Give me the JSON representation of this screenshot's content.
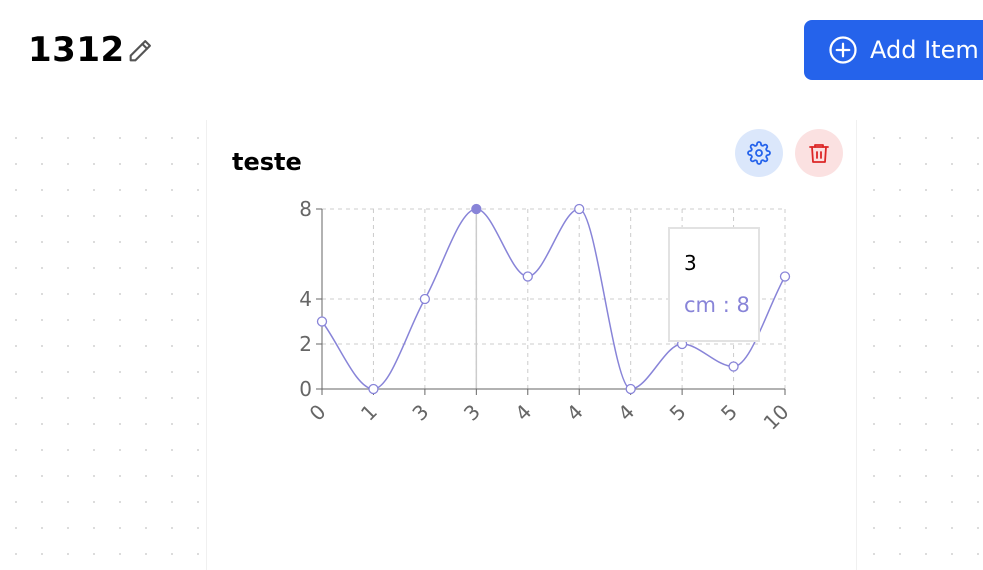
{
  "page": {
    "title": "1312"
  },
  "header": {
    "add_button_label": "Add Item"
  },
  "card": {
    "title": "teste"
  },
  "tooltip": {
    "label": "3",
    "series_name": "cm",
    "separator": " : ",
    "value": "8"
  },
  "colors": {
    "primary_button": "#2563eb",
    "series_line": "#8884d8",
    "settings_bg": "#dbe7fb",
    "settings_icon": "#2563eb",
    "delete_bg": "#fbe1e1",
    "delete_icon": "#dc2626"
  },
  "icons": [
    "pencil-icon",
    "plus-circle-icon",
    "gear-icon",
    "trash-icon"
  ],
  "chart_data": {
    "type": "line",
    "curve": "monotone",
    "categories": [
      "0",
      "1",
      "3",
      "3",
      "4",
      "4",
      "4",
      "5",
      "5",
      "10"
    ],
    "series": [
      {
        "name": "cm",
        "values": [
          3,
          0,
          4,
          8,
          5,
          8,
          0,
          2,
          1,
          5
        ]
      }
    ],
    "yticks": [
      "0",
      "2",
      "4",
      "8"
    ],
    "ylim": [
      0,
      8
    ],
    "grid": true,
    "active_index": 3,
    "xlabel": "",
    "ylabel": ""
  }
}
